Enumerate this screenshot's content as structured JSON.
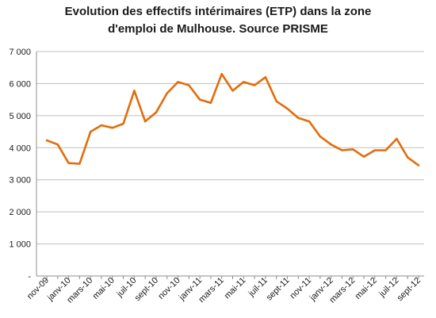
{
  "chart_data": {
    "type": "line",
    "title_lines": [
      "Evolution des effectifs intérimaires (ETP) dans la zone",
      "d'emploi de Mulhouse. Source PRISME"
    ],
    "xlabel": "",
    "ylabel": "",
    "ylim": [
      0,
      7000
    ],
    "yticks": [
      0,
      1000,
      2000,
      3000,
      4000,
      5000,
      6000,
      7000
    ],
    "ytick_labels": [
      "-",
      "1 000",
      "2 000",
      "3 000",
      "4 000",
      "5 000",
      "6 000",
      "7 000"
    ],
    "x_tick_labels": [
      "nov-09",
      "janv-10",
      "mars-10",
      "mai-10",
      "juil-10",
      "sept-10",
      "nov-10",
      "janv-11",
      "mars-11",
      "mai-11",
      "juil-11",
      "sept-11",
      "nov-11",
      "janv-12",
      "mars-12",
      "mai-12",
      "juil-12",
      "sept-12"
    ],
    "grid": "horizontal",
    "color": "#E36C0A",
    "values": [
      4230,
      4100,
      3520,
      3500,
      4500,
      4700,
      4620,
      4750,
      5780,
      4820,
      5100,
      5700,
      6050,
      5950,
      5500,
      5400,
      6300,
      5780,
      6050,
      5950,
      6200,
      5450,
      5220,
      4930,
      4820,
      4350,
      4100,
      3920,
      3950,
      3720,
      3920,
      3920,
      4280,
      3700,
      3450
    ]
  }
}
